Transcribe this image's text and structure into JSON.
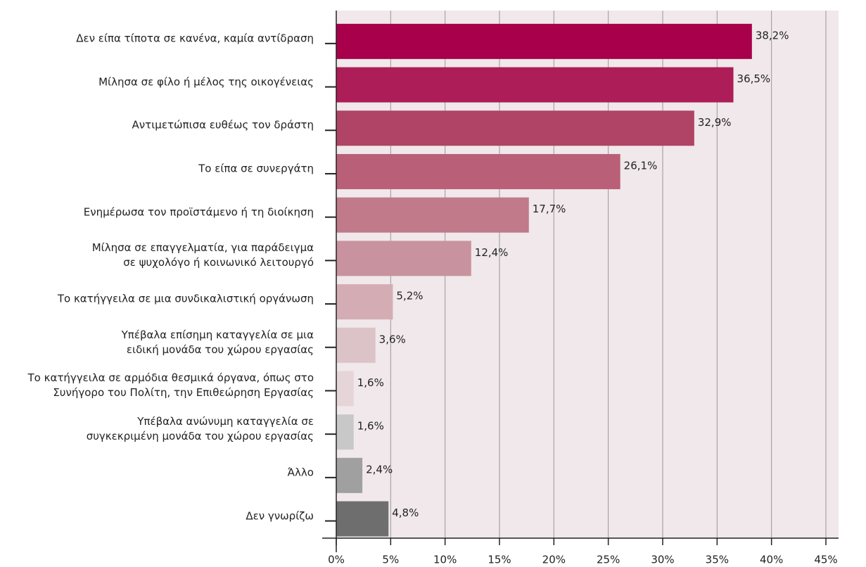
{
  "chart_data": {
    "type": "bar",
    "orientation": "horizontal",
    "categories": [
      "Δεν είπα τίποτα σε κανένα, καμία αντίδραση",
      "Μίλησα σε φίλο ή μέλος της οικογένειας",
      "Αντιμετώπισα ευθέως τον δράστη",
      "Το είπα σε συνεργάτη",
      "Ενημέρωσα τον προϊστάμενο ή τη διοίκηση",
      "Μίλησα σε επαγγελματία, για παράδειγμα\nσε ψυχολόγο ή κοινωνικό λειτουργό",
      "Το κατήγγειλα σε μια συνδικαλιστική οργάνωση",
      "Υπέβαλα επίσημη καταγγελία σε μια\nειδική μονάδα του χώρου εργασίας",
      "Το κατήγγειλα σε αρμόδια θεσμικά όργανα, όπως στο\nΣυνήγορο του Πολίτη, την Επιθεώρηση Εργασίας",
      "Υπέβαλα ανώνυμη καταγγελία σε\nσυγκεκριμένη μονάδα του χώρου εργασίας",
      "Άλλο",
      "Δεν γνωρίζω"
    ],
    "values": [
      38.2,
      36.5,
      32.9,
      26.1,
      17.7,
      12.4,
      5.2,
      3.6,
      1.6,
      1.6,
      2.4,
      4.8
    ],
    "value_labels": [
      "38,2%",
      "36,5%",
      "32,9%",
      "26,1%",
      "17,7%",
      "12,4%",
      "5,2%",
      "3,6%",
      "1,6%",
      "1,6%",
      "2,4%",
      "4,8%"
    ],
    "colors": [
      "#a8004a",
      "#ad1d57",
      "#b04466",
      "#b96078",
      "#c07a8a",
      "#c8939e",
      "#d4adb4",
      "#dcc3c8",
      "#e6d5d8",
      "#c8c8c8",
      "#a0a0a0",
      "#6e6e6e"
    ],
    "xlim": [
      0,
      45
    ],
    "xticks": [
      {
        "value": 0,
        "label": "0%"
      },
      {
        "value": 5,
        "label": "5%"
      },
      {
        "value": 10,
        "label": "10%"
      },
      {
        "value": 15,
        "label": "15%"
      },
      {
        "value": 20,
        "label": "20%"
      },
      {
        "value": 25,
        "label": "25%"
      },
      {
        "value": 30,
        "label": "30%"
      },
      {
        "value": 35,
        "label": "35%"
      },
      {
        "value": 40,
        "label": "40%"
      },
      {
        "value": 45,
        "label": "45%"
      }
    ],
    "grid": true,
    "background": "#f0e8ea"
  }
}
